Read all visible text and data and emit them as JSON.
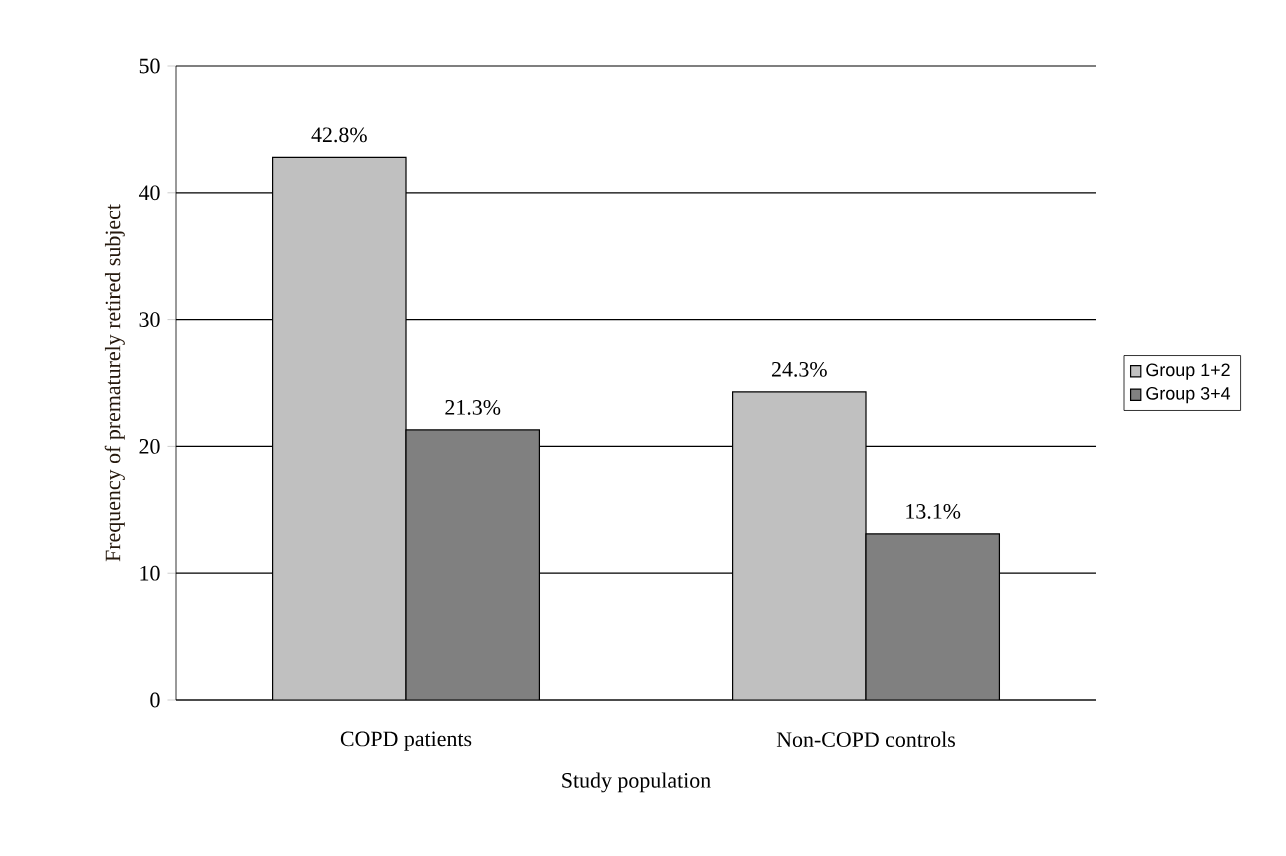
{
  "chart_data": {
    "type": "bar",
    "xlabel": "Study population",
    "ylabel": "Frequency of prematurely retired subject",
    "categories": [
      "COPD patients",
      "Non-COPD controls"
    ],
    "series": [
      {
        "name": "Group 1+2",
        "color": "#c0c0c0",
        "values": [
          42.8,
          24.3
        ],
        "value_labels": [
          "42.8%",
          "24.3%"
        ]
      },
      {
        "name": "Group 3+4",
        "color": "#808080",
        "values": [
          21.3,
          13.1
        ],
        "value_labels": [
          "21.3%",
          "13.1%"
        ]
      }
    ],
    "ylim": [
      0,
      50
    ],
    "yticks": [
      0,
      10,
      20,
      30,
      40,
      50
    ],
    "grid": "y",
    "legend": "right"
  }
}
